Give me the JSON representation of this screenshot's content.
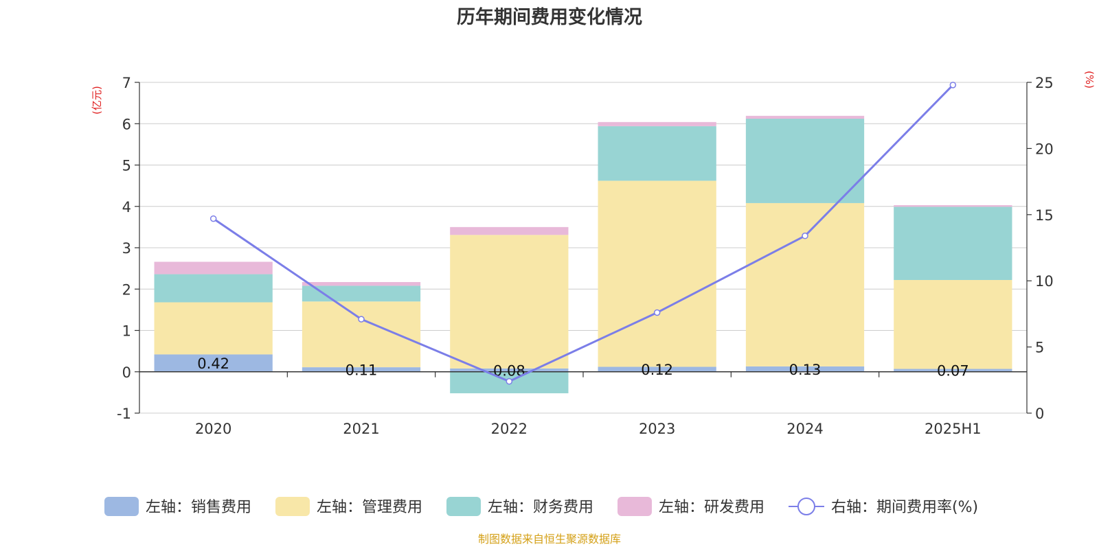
{
  "chart_data": {
    "type": "bar",
    "title": "历年期间费用变化情况",
    "left_unit": "(亿元)",
    "right_unit": "(%)",
    "categories": [
      "2020",
      "2021",
      "2022",
      "2023",
      "2024",
      "2025H1"
    ],
    "left_axis": {
      "min": -1,
      "max": 7,
      "ticks": [
        "-1",
        "0",
        "1",
        "2",
        "3",
        "4",
        "5",
        "6",
        "7"
      ]
    },
    "right_axis": {
      "min": 0,
      "max": 25,
      "ticks": [
        "0",
        "5",
        "10",
        "15",
        "20",
        "25"
      ]
    },
    "grid": true,
    "legend_position": "bottom",
    "series": [
      {
        "name": "左轴：销售费用",
        "axis": "left",
        "kind": "bar",
        "color": "#9db8e2",
        "values": [
          0.42,
          0.11,
          0.08,
          0.12,
          0.13,
          0.07
        ],
        "labels": [
          "0.42",
          "0.11",
          "0.08",
          "0.12",
          "0.13",
          "0.07"
        ]
      },
      {
        "name": "左轴：管理费用",
        "axis": "left",
        "kind": "bar",
        "color": "#f8e7a8",
        "values": [
          1.26,
          1.59,
          3.23,
          4.5,
          3.95,
          2.15
        ]
      },
      {
        "name": "左轴：财务费用",
        "axis": "left",
        "kind": "bar",
        "color": "#98d4d3",
        "values": [
          0.68,
          0.38,
          -0.52,
          1.32,
          2.04,
          1.77
        ]
      },
      {
        "name": "左轴：研发费用",
        "axis": "left",
        "kind": "bar",
        "color": "#e8b9d9",
        "values": [
          0.3,
          0.09,
          0.19,
          0.1,
          0.07,
          0.04
        ]
      },
      {
        "name": "右轴：期间费用率(%)",
        "axis": "right",
        "kind": "line",
        "color": "#7b7ee8",
        "values": [
          14.7,
          7.1,
          2.4,
          7.6,
          13.4,
          24.8
        ]
      }
    ],
    "colors": {
      "unit": "#e02020",
      "source": "#d4a017",
      "axis": "#333333",
      "grid": "#cccccc"
    },
    "source": "制图数据来自恒生聚源数据库"
  }
}
